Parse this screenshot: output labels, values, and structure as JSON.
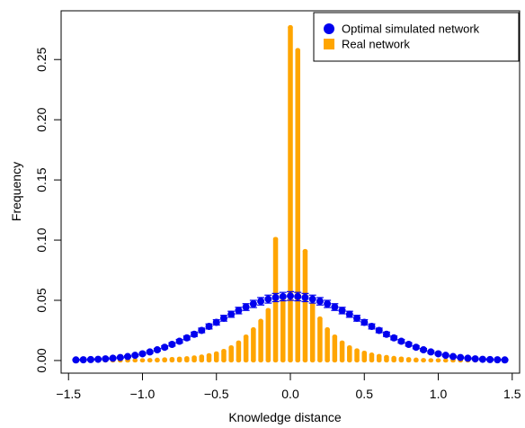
{
  "chart_data": {
    "type": "bar",
    "xlabel": "Knowledge distance",
    "ylabel": "Frequency",
    "xlim": [
      -1.55,
      1.55
    ],
    "ylim": [
      -0.0105,
      0.2905
    ],
    "xticks": [
      "-1.5",
      "-1.0",
      "-0.5",
      "0.0",
      "0.5",
      "1.0",
      "1.5"
    ],
    "xtick_values": [
      -1.5,
      -1.0,
      -0.5,
      0.0,
      0.5,
      1.0,
      1.5
    ],
    "yticks": [
      "0.00",
      "0.05",
      "0.10",
      "0.15",
      "0.20",
      "0.25"
    ],
    "ytick_values": [
      0,
      0.05,
      0.1,
      0.15,
      0.2,
      0.25
    ],
    "legend_position": "top-right",
    "x": [
      -1.45,
      -1.4,
      -1.35,
      -1.3,
      -1.25,
      -1.2,
      -1.15,
      -1.1,
      -1.05,
      -1.0,
      -0.95,
      -0.9,
      -0.85,
      -0.8,
      -0.75,
      -0.7,
      -0.65,
      -0.6,
      -0.55,
      -0.5,
      -0.45,
      -0.4,
      -0.35,
      -0.3,
      -0.25,
      -0.2,
      -0.15,
      -0.1,
      -0.05,
      0.0,
      0.05,
      0.1,
      0.15,
      0.2,
      0.25,
      0.3,
      0.35,
      0.4,
      0.45,
      0.5,
      0.55,
      0.6,
      0.65,
      0.7,
      0.75,
      0.8,
      0.85,
      0.9,
      0.95,
      1.0,
      1.05,
      1.1,
      1.15,
      1.2,
      1.25,
      1.3,
      1.35,
      1.4,
      1.45
    ],
    "series": [
      {
        "name": "Optimal simulated network",
        "style": "points-with-error-bars",
        "color": "#0000ee",
        "values": [
          0.0005,
          0.0006,
          0.0008,
          0.001,
          0.0014,
          0.0019,
          0.0025,
          0.0033,
          0.0043,
          0.0056,
          0.0071,
          0.0089,
          0.011,
          0.0134,
          0.016,
          0.0188,
          0.0218,
          0.025,
          0.0283,
          0.0317,
          0.0351,
          0.0384,
          0.0415,
          0.0444,
          0.047,
          0.0492,
          0.051,
          0.0523,
          0.0531,
          0.0536,
          0.0531,
          0.0523,
          0.051,
          0.0492,
          0.047,
          0.0444,
          0.0415,
          0.0384,
          0.0351,
          0.0317,
          0.0283,
          0.025,
          0.0218,
          0.0188,
          0.016,
          0.0134,
          0.011,
          0.0089,
          0.0071,
          0.0056,
          0.0043,
          0.0033,
          0.0025,
          0.0019,
          0.0014,
          0.001,
          0.0008,
          0.0006,
          0.0005
        ],
        "errors": [
          0.0003,
          0.0003,
          0.0004,
          0.0004,
          0.0005,
          0.0005,
          0.0006,
          0.0007,
          0.0008,
          0.0009,
          0.001,
          0.0011,
          0.0012,
          0.0014,
          0.0015,
          0.0016,
          0.0018,
          0.0019,
          0.0021,
          0.0022,
          0.0024,
          0.0025,
          0.0027,
          0.0028,
          0.003,
          0.0031,
          0.0033,
          0.0034,
          0.0035,
          0.0036,
          0.0035,
          0.0034,
          0.0033,
          0.0031,
          0.003,
          0.0028,
          0.0027,
          0.0025,
          0.0024,
          0.0022,
          0.0021,
          0.0019,
          0.0018,
          0.0016,
          0.0015,
          0.0014,
          0.0012,
          0.0011,
          0.001,
          0.0009,
          0.0008,
          0.0007,
          0.0006,
          0.0005,
          0.0005,
          0.0004,
          0.0004,
          0.0003,
          0.0003
        ]
      },
      {
        "name": "Real network",
        "style": "bars",
        "color": "#ffa500",
        "values": [
          0,
          0,
          0,
          0,
          0,
          0,
          0,
          0,
          0.0002,
          0.0003,
          0.0005,
          0.0007,
          0.001,
          0.0013,
          0.0016,
          0.002,
          0.0026,
          0.0034,
          0.0045,
          0.006,
          0.008,
          0.011,
          0.015,
          0.02,
          0.026,
          0.033,
          0.042,
          0.101,
          0.053,
          0.277,
          0.258,
          0.091,
          0.047,
          0.035,
          0.026,
          0.02,
          0.015,
          0.011,
          0.0085,
          0.0065,
          0.005,
          0.0038,
          0.003,
          0.0022,
          0.0017,
          0.0012,
          0.0008,
          0.0005,
          0.0003,
          0.0002,
          0,
          0,
          0,
          0,
          0,
          0,
          0,
          0,
          0
        ]
      }
    ]
  }
}
